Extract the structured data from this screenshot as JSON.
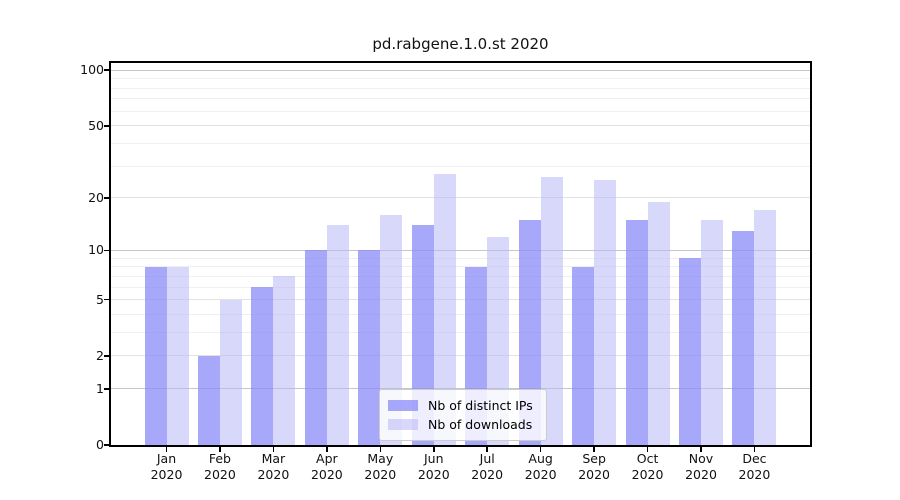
{
  "figure": {
    "title": "pd.rabgene.1.0.st 2020"
  },
  "chart_data": {
    "type": "bar",
    "title": "pd.rabgene.1.0.st 2020",
    "categories": [
      "Jan 2020",
      "Feb 2020",
      "Mar 2020",
      "Apr 2020",
      "May 2020",
      "Jun 2020",
      "Jul 2020",
      "Aug 2020",
      "Sep 2020",
      "Oct 2020",
      "Nov 2020",
      "Dec 2020"
    ],
    "months": [
      "Jan",
      "Feb",
      "Mar",
      "Apr",
      "May",
      "Jun",
      "Jul",
      "Aug",
      "Sep",
      "Oct",
      "Nov",
      "Dec"
    ],
    "year": "2020",
    "series": [
      {
        "name": "Nb of distinct IPs",
        "color": "rgba(139,139,248,0.75)",
        "solid_color": "#a8a8f8",
        "values": [
          8,
          2,
          6,
          10,
          10,
          14,
          8,
          15,
          8,
          15,
          9,
          13
        ]
      },
      {
        "name": "Nb of downloads",
        "color": "rgba(184,184,246,0.55)",
        "solid_color": "#d8d8f9",
        "values": [
          8,
          5,
          7,
          14,
          16,
          27,
          12,
          26,
          25,
          19,
          15,
          17
        ]
      }
    ],
    "y_axis": {
      "scale": "log1p",
      "ticks": [
        0,
        1,
        2,
        5,
        10,
        20,
        50,
        100
      ],
      "major_gridlines": [
        1,
        10,
        100
      ],
      "mid_gridlines": [
        2,
        5,
        20,
        50
      ],
      "minor_gridlines": [
        3,
        4,
        6,
        7,
        8,
        9,
        30,
        40,
        60,
        70,
        80,
        90
      ],
      "top_value": 110
    },
    "grid": true,
    "legend": {
      "position": "lower-center-inside"
    },
    "colors": {
      "spine": "#000000",
      "grid_major": "#c6c6c6",
      "grid_mid": "#e2e2e2",
      "grid_minor": "#efefef",
      "background": "#ffffff"
    }
  }
}
